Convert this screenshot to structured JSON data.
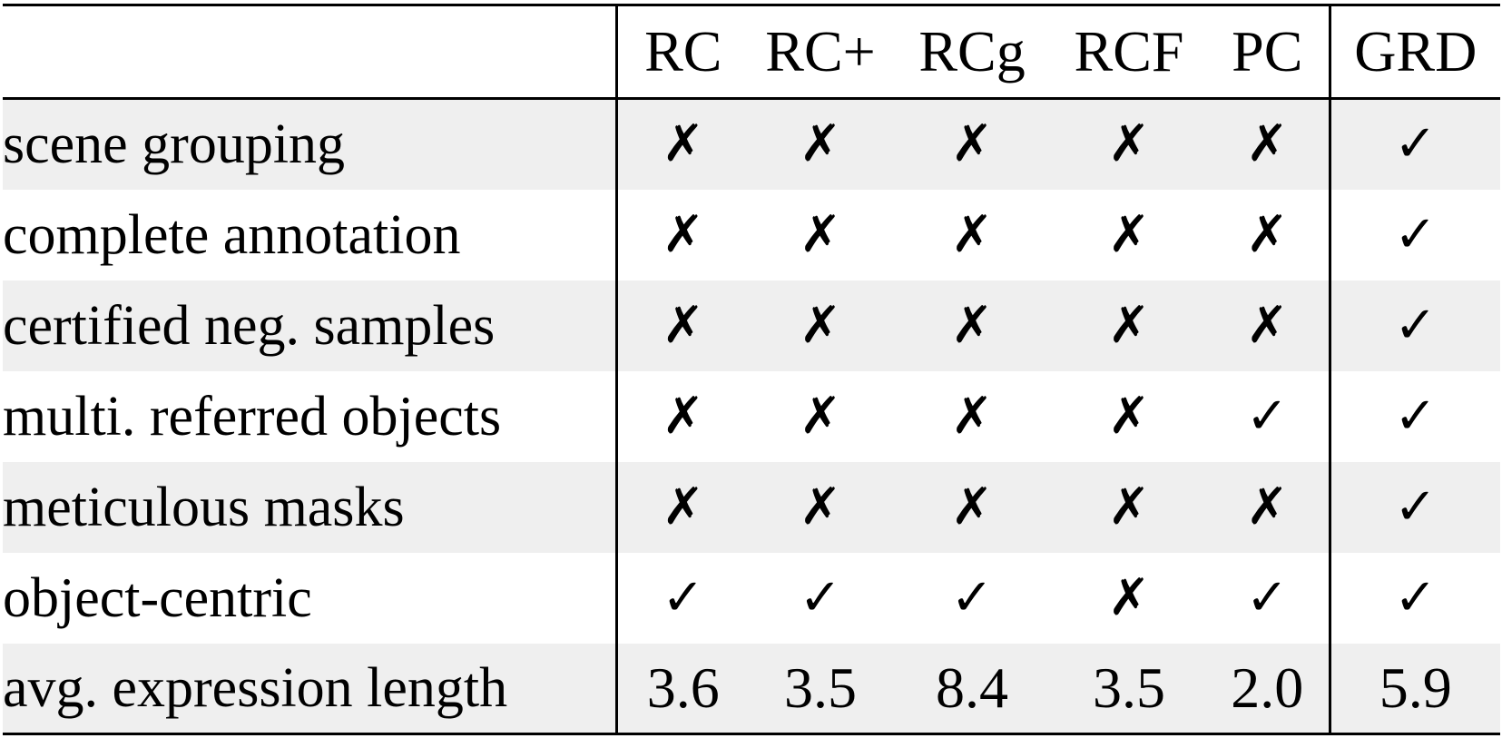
{
  "table": {
    "columns": [
      "",
      "RC",
      "RC+",
      "RCg",
      "RCF",
      "PC",
      "GRD"
    ],
    "rows": [
      {
        "label": "scene grouping",
        "values": [
          "✗",
          "✗",
          "✗",
          "✗",
          "✗",
          "✓"
        ]
      },
      {
        "label": "complete annotation",
        "values": [
          "✗",
          "✗",
          "✗",
          "✗",
          "✗",
          "✓"
        ]
      },
      {
        "label": "certified neg. samples",
        "values": [
          "✗",
          "✗",
          "✗",
          "✗",
          "✗",
          "✓"
        ]
      },
      {
        "label": "multi. referred objects",
        "values": [
          "✗",
          "✗",
          "✗",
          "✗",
          "✓",
          "✓"
        ]
      },
      {
        "label": "meticulous masks",
        "values": [
          "✗",
          "✗",
          "✗",
          "✗",
          "✗",
          "✓"
        ]
      },
      {
        "label": "object-centric",
        "values": [
          "✓",
          "✓",
          "✓",
          "✗",
          "✓",
          "✓"
        ]
      },
      {
        "label": "avg. expression length",
        "values": [
          "3.6",
          "3.5",
          "8.4",
          "3.5",
          "2.0",
          "5.9"
        ]
      }
    ]
  }
}
